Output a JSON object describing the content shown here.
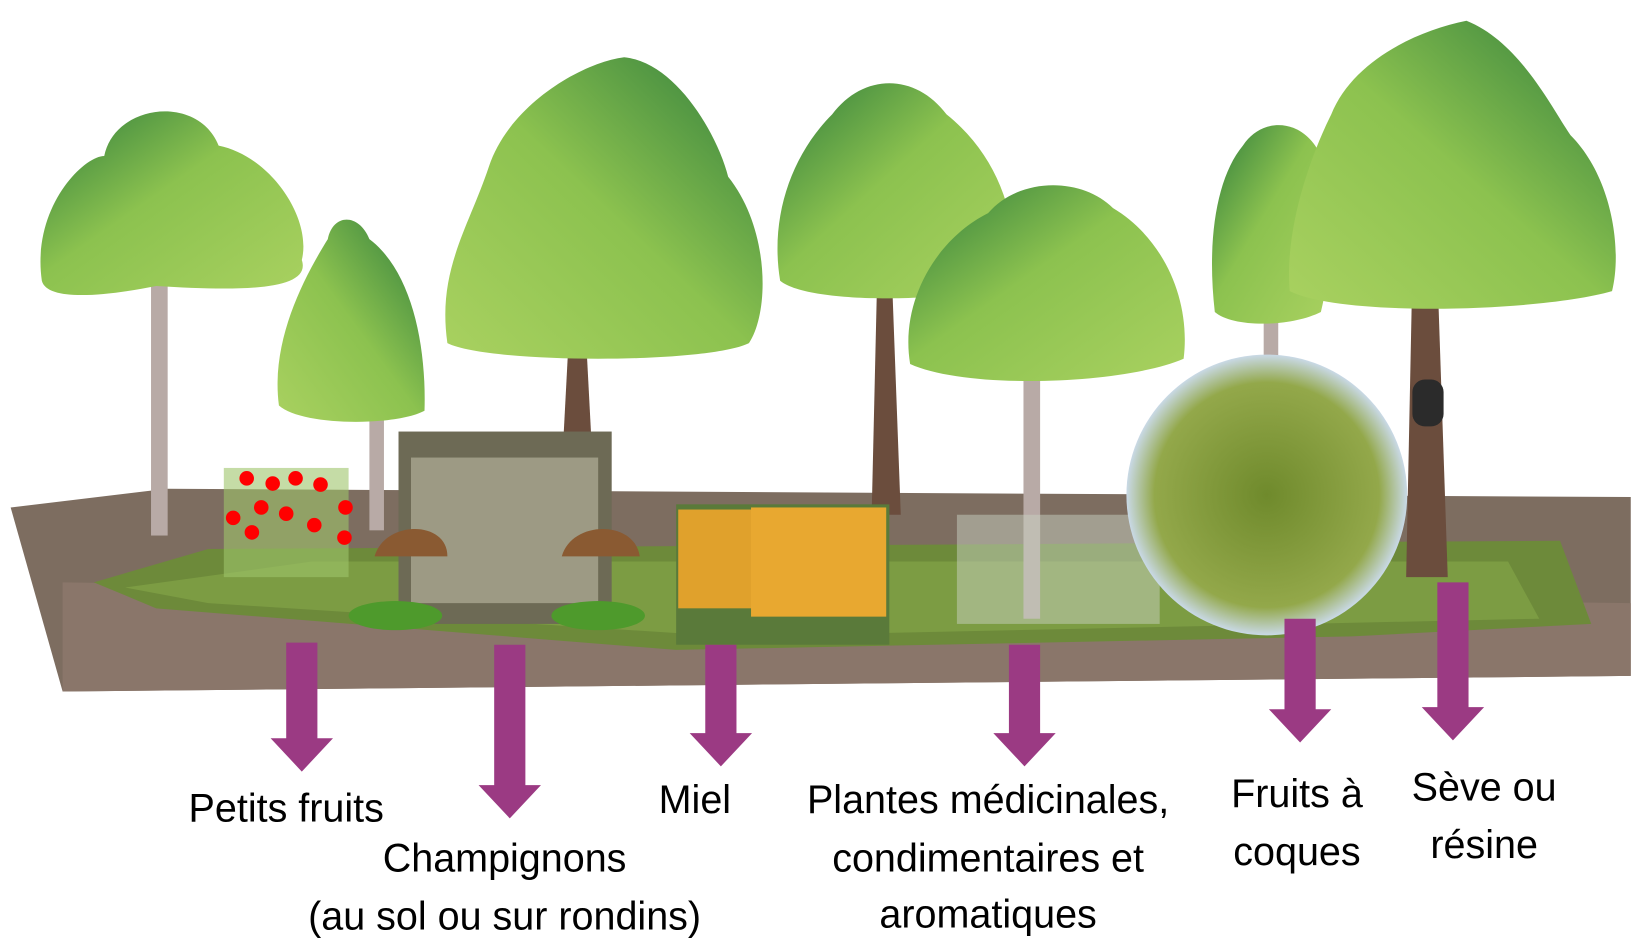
{
  "products": [
    {
      "lines": [
        "Petits fruits"
      ]
    },
    {
      "lines": [
        "Champignons",
        "(au sol ou sur rondins)"
      ]
    },
    {
      "lines": [
        "Miel"
      ]
    },
    {
      "lines": [
        "Plantes médicinales,",
        "condimentaires et",
        "aromatiques"
      ]
    },
    {
      "lines": [
        "Fruits à",
        "coques"
      ]
    },
    {
      "lines": [
        "Sève ou",
        "résine"
      ]
    }
  ]
}
